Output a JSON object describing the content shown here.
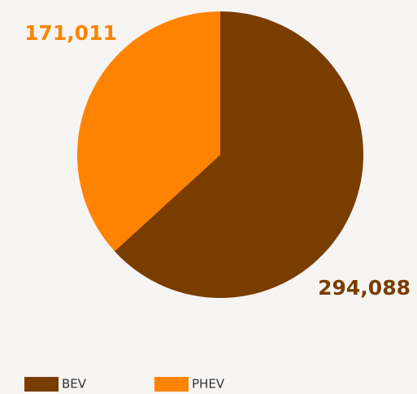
{
  "chart_data": {
    "type": "pie",
    "categories": [
      "BEV",
      "PHEV"
    ],
    "values": [
      294088,
      171011
    ],
    "value_labels": [
      "294,088",
      "171,011"
    ],
    "colors": [
      "#7a3d00",
      "#ff8300"
    ],
    "legend": "bottom-left"
  }
}
